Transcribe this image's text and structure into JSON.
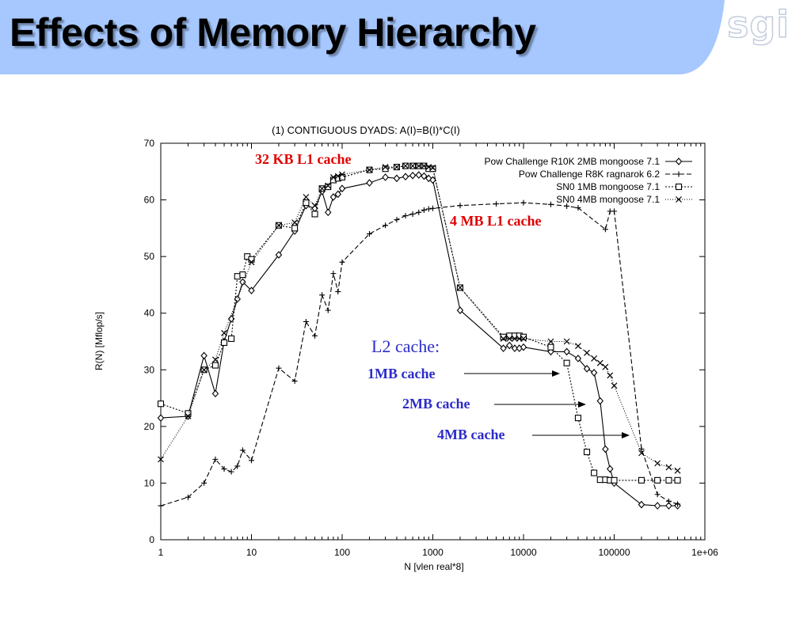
{
  "slide": {
    "title": "Effects of Memory Hierarchy",
    "logo_text": "sgi",
    "band_color": "#a6c8ff"
  },
  "chart_data": {
    "type": "line",
    "title": "(1) CONTIGUOUS DYADS:  A(I)=B(I)*C(I)",
    "xlabel": "N [vlen real*8]",
    "ylabel": "R(N) [Mflop/s]",
    "xscale": "log",
    "xlim": [
      1,
      1000000
    ],
    "ylim": [
      0,
      70
    ],
    "x_ticks": [
      1,
      10,
      100,
      1000,
      10000,
      100000,
      1000000
    ],
    "x_tick_labels": [
      "1",
      "10",
      "100",
      "1000",
      "10000",
      "100000",
      "1e+06"
    ],
    "y_ticks": [
      0,
      10,
      20,
      30,
      40,
      50,
      60,
      70
    ],
    "y_tick_labels": [
      "0",
      "10",
      "20",
      "30",
      "40",
      "50",
      "60",
      "70"
    ],
    "grid": false,
    "legend_position": "top-right",
    "series": [
      {
        "name": "Pow Challenge R10K 2MB mongoose 7.1",
        "marker": "diamond",
        "dash": "",
        "points": [
          [
            1,
            21.5
          ],
          [
            2,
            21.8
          ],
          [
            3,
            32.5
          ],
          [
            4,
            25.8
          ],
          [
            5,
            35
          ],
          [
            6,
            39
          ],
          [
            7,
            42.5
          ],
          [
            8,
            45.5
          ],
          [
            10,
            44
          ],
          [
            20,
            50.3
          ],
          [
            30,
            54.5
          ],
          [
            40,
            59
          ],
          [
            50,
            58.5
          ],
          [
            60,
            61.5
          ],
          [
            70,
            57.8
          ],
          [
            80,
            60.5
          ],
          [
            90,
            61
          ],
          [
            100,
            62
          ],
          [
            200,
            63
          ],
          [
            300,
            64
          ],
          [
            400,
            63.8
          ],
          [
            500,
            64.1
          ],
          [
            600,
            64.3
          ],
          [
            700,
            64.4
          ],
          [
            800,
            64.2
          ],
          [
            900,
            63.8
          ],
          [
            1000,
            63.5
          ],
          [
            2000,
            40.5
          ],
          [
            6000,
            33.8
          ],
          [
            7000,
            34.3
          ],
          [
            8000,
            33.8
          ],
          [
            9000,
            33.8
          ],
          [
            10000,
            34
          ],
          [
            20000,
            33.2
          ],
          [
            30000,
            33.2
          ],
          [
            40000,
            32
          ],
          [
            50000,
            30.2
          ],
          [
            60000,
            29.5
          ],
          [
            70000,
            24.5
          ],
          [
            80000,
            16
          ],
          [
            90000,
            12.5
          ],
          [
            100000,
            10
          ],
          [
            200000,
            6.2
          ],
          [
            300000,
            6
          ],
          [
            400000,
            6
          ],
          [
            500000,
            6
          ]
        ]
      },
      {
        "name": "Pow Challenge R8K ragnarok 6.2",
        "marker": "plus",
        "dash": "6,3",
        "points": [
          [
            1,
            6
          ],
          [
            2,
            7.5
          ],
          [
            3,
            10
          ],
          [
            4,
            14.2
          ],
          [
            5,
            12.5
          ],
          [
            6,
            12
          ],
          [
            7,
            13
          ],
          [
            8,
            15.8
          ],
          [
            10,
            14
          ],
          [
            20,
            30.3
          ],
          [
            30,
            28
          ],
          [
            40,
            38.5
          ],
          [
            50,
            36
          ],
          [
            60,
            43.2
          ],
          [
            70,
            40.5
          ],
          [
            80,
            47
          ],
          [
            90,
            43.8
          ],
          [
            100,
            49
          ],
          [
            200,
            54
          ],
          [
            300,
            55.5
          ],
          [
            400,
            56.5
          ],
          [
            500,
            57.2
          ],
          [
            600,
            57.5
          ],
          [
            700,
            57.8
          ],
          [
            800,
            58.2
          ],
          [
            900,
            58.4
          ],
          [
            1000,
            58.5
          ],
          [
            2000,
            59
          ],
          [
            5000,
            59.3
          ],
          [
            10000,
            59.5
          ],
          [
            20000,
            59.2
          ],
          [
            30000,
            58.9
          ],
          [
            40000,
            58.6
          ],
          [
            80000,
            54.8
          ],
          [
            90000,
            58
          ],
          [
            100000,
            58
          ],
          [
            200000,
            16
          ],
          [
            300000,
            8
          ],
          [
            400000,
            6.8
          ],
          [
            500000,
            6.3
          ]
        ]
      },
      {
        "name": "SN0 1MB mongoose 7.1",
        "marker": "square",
        "dash": "2,2",
        "points": [
          [
            1,
            24
          ],
          [
            2,
            22.3
          ],
          [
            3,
            30
          ],
          [
            4,
            30.8
          ],
          [
            5,
            34.8
          ],
          [
            6,
            35.5
          ],
          [
            7,
            46.5
          ],
          [
            8,
            46.8
          ],
          [
            9,
            50
          ],
          [
            10,
            49.5
          ],
          [
            20,
            55.5
          ],
          [
            30,
            55
          ],
          [
            40,
            59.5
          ],
          [
            50,
            57.5
          ],
          [
            60,
            62
          ],
          [
            70,
            62.3
          ],
          [
            80,
            63.5
          ],
          [
            90,
            63.8
          ],
          [
            100,
            64
          ],
          [
            200,
            65.3
          ],
          [
            300,
            65.5
          ],
          [
            400,
            65.8
          ],
          [
            500,
            66
          ],
          [
            600,
            66
          ],
          [
            700,
            66
          ],
          [
            800,
            66
          ],
          [
            900,
            65.5
          ],
          [
            1000,
            65.5
          ],
          [
            2000,
            44.5
          ],
          [
            6000,
            35.8
          ],
          [
            7000,
            36
          ],
          [
            8000,
            36
          ],
          [
            9000,
            36
          ],
          [
            10000,
            35.8
          ],
          [
            20000,
            34
          ],
          [
            30000,
            31.2
          ],
          [
            40000,
            21.5
          ],
          [
            50000,
            15.5
          ],
          [
            60000,
            11.8
          ],
          [
            70000,
            10.6
          ],
          [
            80000,
            10.6
          ],
          [
            90000,
            10.5
          ],
          [
            100000,
            10.5
          ],
          [
            200000,
            10.5
          ],
          [
            300000,
            10.5
          ],
          [
            400000,
            10.5
          ],
          [
            500000,
            10.5
          ]
        ]
      },
      {
        "name": "SN0 4MB mongoose 7.1",
        "marker": "cross",
        "dash": "1,2",
        "points": [
          [
            1,
            14.2
          ],
          [
            2,
            21.8
          ],
          [
            3,
            30
          ],
          [
            4,
            31.8
          ],
          [
            5,
            36.5
          ],
          [
            10,
            49
          ],
          [
            20,
            55.5
          ],
          [
            30,
            56
          ],
          [
            40,
            60.5
          ],
          [
            50,
            59
          ],
          [
            60,
            62
          ],
          [
            70,
            62.5
          ],
          [
            80,
            64
          ],
          [
            90,
            64.2
          ],
          [
            100,
            64.5
          ],
          [
            200,
            65.3
          ],
          [
            300,
            65.8
          ],
          [
            400,
            65.8
          ],
          [
            500,
            66
          ],
          [
            600,
            66
          ],
          [
            700,
            66
          ],
          [
            800,
            66
          ],
          [
            900,
            65.8
          ],
          [
            1000,
            65.7
          ],
          [
            2000,
            44.5
          ],
          [
            6000,
            35.5
          ],
          [
            7000,
            35.5
          ],
          [
            8000,
            35.5
          ],
          [
            9000,
            35.5
          ],
          [
            10000,
            35.5
          ],
          [
            20000,
            35
          ],
          [
            30000,
            35
          ],
          [
            40000,
            34.2
          ],
          [
            50000,
            33
          ],
          [
            60000,
            32
          ],
          [
            70000,
            31.2
          ],
          [
            80000,
            30.5
          ],
          [
            90000,
            29
          ],
          [
            100000,
            27.2
          ],
          [
            200000,
            15.3
          ],
          [
            300000,
            13.5
          ],
          [
            400000,
            12.8
          ],
          [
            500000,
            12.2
          ]
        ]
      }
    ],
    "annotations": {
      "l1_32kb": "32 KB L1 cache",
      "l1_4mb": "4 MB L1 cache",
      "l2_heading": "L2 cache:",
      "l2_1mb": "1MB cache",
      "l2_2mb": "2MB cache",
      "l2_4mb": "4MB cache"
    },
    "colors": {
      "red_annotation": "#e00000",
      "blue_annotation": "#2c2cc8",
      "series_line": "#000000"
    }
  }
}
